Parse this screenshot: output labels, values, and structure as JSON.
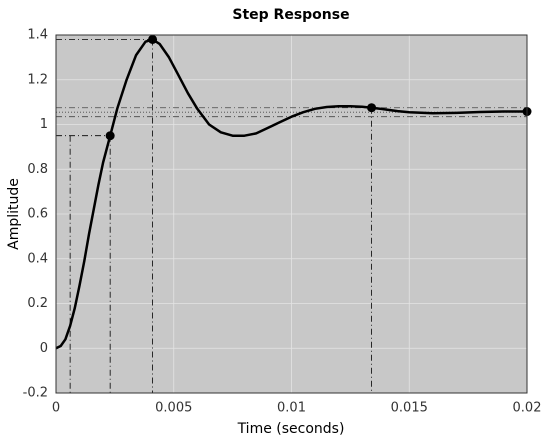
{
  "chart_data": {
    "type": "line",
    "title": "Step Response",
    "x_label": "Time (seconds)",
    "y_label": "Amplitude",
    "x": [
      0,
      0.0002,
      0.0004,
      0.0006,
      0.0008,
      0.001,
      0.0012,
      0.0014,
      0.0016,
      0.0018,
      0.002,
      0.0023,
      0.0026,
      0.003,
      0.0034,
      0.0038,
      0.0041,
      0.0044,
      0.0048,
      0.0052,
      0.0056,
      0.006,
      0.0065,
      0.007,
      0.0075,
      0.008,
      0.0085,
      0.009,
      0.0095,
      0.01,
      0.0105,
      0.011,
      0.0115,
      0.012,
      0.0125,
      0.013,
      0.0134,
      0.014,
      0.0145,
      0.015,
      0.016,
      0.017,
      0.018,
      0.019,
      0.02
    ],
    "series": [
      {
        "color": "#000000",
        "values": [
          0,
          0.01,
          0.04,
          0.1,
          0.18,
          0.28,
          0.39,
          0.51,
          0.62,
          0.73,
          0.83,
          0.95,
          1.07,
          1.2,
          1.31,
          1.37,
          1.38,
          1.36,
          1.3,
          1.22,
          1.14,
          1.07,
          1.0,
          0.965,
          0.95,
          0.95,
          0.96,
          0.985,
          1.01,
          1.035,
          1.055,
          1.07,
          1.078,
          1.082,
          1.082,
          1.079,
          1.075,
          1.067,
          1.06,
          1.055,
          1.05,
          1.052,
          1.056,
          1.058,
          1.058
        ]
      }
    ],
    "markers": [
      {
        "x": 0.0023,
        "y": 0.95
      },
      {
        "x": 0.0041,
        "y": 1.38
      },
      {
        "x": 0.0134,
        "y": 1.075
      },
      {
        "x": 0.02,
        "y": 1.058
      }
    ],
    "rise_start_x": 0.0006,
    "settling_band": [
      1.035,
      1.075
    ],
    "steady_state": 1.055,
    "xlim": [
      0,
      0.02
    ],
    "ylim": [
      -0.2,
      1.4
    ],
    "xticks": [
      0,
      0.005,
      0.01,
      0.015,
      0.02
    ],
    "yticks": [
      -0.2,
      0,
      0.2,
      0.4,
      0.6,
      0.8,
      1,
      1.2,
      1.4
    ],
    "grid": true
  }
}
